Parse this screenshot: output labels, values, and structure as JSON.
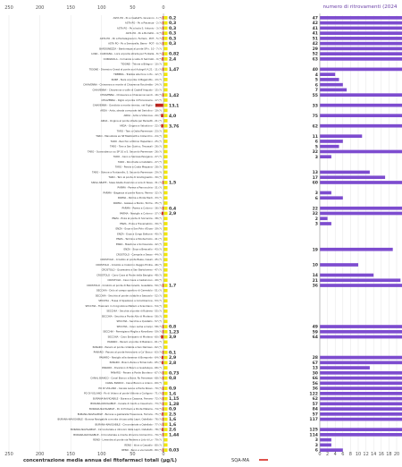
{
  "chart_data": {
    "type": "bar",
    "orientation": "horizontal",
    "right_axis_title": "numero di ritrovamenti (2024",
    "bottom_axis_title": "concentrazione media annua  dei fitofarmaci totali (μg/L)",
    "legend_label": "SQA-MA",
    "left_axis_ticks": [
      "250",
      "200",
      "150",
      "100",
      "50",
      "0"
    ],
    "right_axis_ticks": [
      "0",
      "2",
      "4",
      "6",
      "8",
      "10",
      "12",
      "14",
      "16",
      "18",
      "20"
    ],
    "left_axis_range": [
      0,
      250
    ],
    "right_axis_range": [
      0,
      20
    ],
    "colors": {
      "concentration": "#d7261e",
      "count": "#7d4ccf",
      "sqa": "#f2e600",
      "grid": "#dddddd"
    },
    "stations": [
      {
        "label": "ASTA PO - Po a Castell'S. Giovanni - 1 (*)",
        "conc": "0,2",
        "count": "47",
        "conc_value": 0.2,
        "count_value": 47
      },
      {
        "label": "ASTA PO - Po a Piacenza - 2 (*)",
        "conc": "0,3",
        "count": "42",
        "conc_value": 0.3,
        "count_value": 42
      },
      {
        "label": "ASTA PO - Po a Isola S. Antonio - 3 (*)",
        "conc": "0,3",
        "count": "41",
        "conc_value": 0.3,
        "count_value": 41
      },
      {
        "label": "ASTA PO - Po a Borretto - 4 (*)",
        "conc": "0,3",
        "count": "41",
        "conc_value": 0.3,
        "count_value": 41
      },
      {
        "label": "ASTA PO - Po a Pontelagoscuro, Ferrara - POT - 5 (*)",
        "conc": "0,3",
        "count": "51",
        "conc_value": 0.3,
        "count_value": 51
      },
      {
        "label": "ASTA PO - Po a Serravalle, Berra - POT - 6 (*)",
        "conc": "0,3",
        "count": "42",
        "conc_value": 0.3,
        "count_value": 42
      },
      {
        "label": "BARDONEZZA - Bardonezza al ponte SP n. 10 - 7 (*)",
        "conc": "",
        "count": "29",
        "conc_value": 0,
        "count_value": 29
      },
      {
        "label": "LORA - CAROGNA - Lora al ponte strada per Fontella - 8 (*)",
        "conc": "0,82",
        "count": "52",
        "conc_value": 0.82,
        "count_value": 52
      },
      {
        "label": "CORNAIOLA - Cornaiola a valle di Sarmato - 9 (*)",
        "conc": "2,4",
        "count": "63",
        "conc_value": 2.4,
        "count_value": 63
      },
      {
        "label": "TIDONE - Tidone a Bilegno - 10 (*)",
        "conc": "",
        "count": "",
        "conc_value": 0,
        "count_value": 0
      },
      {
        "label": "TIDONE - Diversivo Ovest al ponte sud Autogrill A.21 - 11 (*)",
        "conc": "1,47",
        "count": "40",
        "conc_value": 1.47,
        "count_value": 40
      },
      {
        "label": "TREBBIA - Trebbia alla foce in Po - 12 (*)",
        "conc": "",
        "count": "4",
        "conc_value": 0,
        "count_value": 4
      },
      {
        "label": "NURE - Nure al ponte di Bagarotto - 13 (*)",
        "conc": "",
        "count": "5",
        "conc_value": 0,
        "count_value": 5
      },
      {
        "label": "CHIAVENNA - Chiavenna a monte di Chiavenna Rocchetta - 14 (*)",
        "conc": "",
        "count": "6",
        "conc_value": 0,
        "count_value": 6
      },
      {
        "label": "CHIAVENNA - Chiavenna a valle di Castell'Arquato - 15 (*)",
        "conc": "",
        "count": "7",
        "conc_value": 0,
        "count_value": 7
      },
      {
        "label": "CHIAVENNA - Chiavenna a Chiavenna Landi - 16 (*)",
        "conc": "1,42",
        "count": "55",
        "conc_value": 1.42,
        "count_value": 55
      },
      {
        "label": "CHIAVENNA - Riglio al ponte di Fiorenzuola - 17 (*)",
        "conc": "",
        "count": "",
        "conc_value": 0,
        "count_value": 0
      },
      {
        "label": "CHIAVENNA - Gandiola a monte immiss. nel Riglio - 18 (*)",
        "conc": "13,1",
        "count": "33",
        "conc_value": 13.1,
        "count_value": 33
      },
      {
        "label": "ARDA - Arda, strada comunale del Seriolino - 19 (*)",
        "conc": "",
        "count": "",
        "conc_value": 0,
        "count_value": 0
      },
      {
        "label": "ARDA - Arda a Villanova - 20 (*)",
        "conc": "4,0",
        "count": "75",
        "conc_value": 4.0,
        "count_value": 75
      },
      {
        "label": "ARDA - Ongina al ponte strada per Bersetti - 21 (*)",
        "conc": "",
        "count": "",
        "conc_value": 0,
        "count_value": 0
      },
      {
        "label": "ARDA - Ongina a Valcalcino - 22 (*)",
        "conc": "3,76",
        "count": "62",
        "conc_value": 3.76,
        "count_value": 62
      },
      {
        "label": "TARO - Taro a Ostia Parmense - 23 (*)",
        "conc": "",
        "count": "",
        "conc_value": 0,
        "count_value": 0
      },
      {
        "label": "TARO - Manubiola ex SP Mastinetti a Collecchio - 24 (*)",
        "conc": "",
        "count": "11",
        "conc_value": 0,
        "count_value": 11
      },
      {
        "label": "TARO - Recchio a Molino Hapeldeni - 25 (*)",
        "conc": "",
        "count": "6",
        "conc_value": 0,
        "count_value": 6
      },
      {
        "label": "TARO - Taro a San Quirico, Trecasali - 26 (*)",
        "conc": "",
        "count": "5",
        "conc_value": 0,
        "count_value": 5
      },
      {
        "label": "TARO - Scannabecco su SP 10 a S. Secondo Parmense - 26 (*)",
        "conc": "",
        "count": "32",
        "conc_value": 0,
        "count_value": 32
      },
      {
        "label": "TARO - Ceno a Sarossa Pevigana - 27 (*)",
        "conc": "",
        "count": "3",
        "conc_value": 0,
        "count_value": 3
      },
      {
        "label": "TARO - Ronchella a Calistello - 27 (*)",
        "conc": "",
        "count": "",
        "conc_value": 0,
        "count_value": 0
      },
      {
        "label": "TARO - Parola a Costa Mezzana - 28 (*)",
        "conc": "",
        "count": "",
        "conc_value": 0,
        "count_value": 0
      },
      {
        "label": "TARO - Stirone a Fontanelle, S. Secondo Parmense - 29 (*)",
        "conc": "",
        "count": "13",
        "conc_value": 0,
        "count_value": 13
      },
      {
        "label": "TARO - Taro al ponte di Gramignazzo - 30 (*)",
        "conc": "",
        "count": "17",
        "conc_value": 0,
        "count_value": 17
      },
      {
        "label": "SISSA ABATE - Sissa Abate diversivo a Loia di Sissa - 31 (*)",
        "conc": "1,5",
        "count": "60",
        "conc_value": 1.5,
        "count_value": 60
      },
      {
        "label": "PARMA - Parma a Pannocchia - 31 (*)",
        "conc": "",
        "count": "",
        "conc_value": 0,
        "count_value": 0
      },
      {
        "label": "PARMA - Baganza al ponte Nuovo, Parma - 32 (*)",
        "conc": "",
        "count": "3",
        "conc_value": 0,
        "count_value": 3
      },
      {
        "label": "PARMA - Parma a Ponte Medi - 33 (*)",
        "conc": "",
        "count": "6",
        "conc_value": 0,
        "count_value": 6
      },
      {
        "label": "PARMA - Galasso a Bozzo, Torrile - 35 (*)",
        "conc": "",
        "count": "",
        "conc_value": 0,
        "count_value": 0
      },
      {
        "label": "PARMA - Parma a Colorno - 36 (*)",
        "conc": "0,4",
        "count": "22",
        "conc_value": 0.4,
        "count_value": 22
      },
      {
        "label": "PARMA - Naviglio a Colorno - 37 (*)",
        "conc": "2,9",
        "count": "32",
        "conc_value": 2.9,
        "count_value": 32
      },
      {
        "label": "ENZA - Enza al ponte di Sorcerole - 38 (*)",
        "conc": "",
        "count": "2",
        "conc_value": 0,
        "count_value": 2
      },
      {
        "label": "ENZA - Enza a Traversetolo - 39 (*)",
        "conc": "",
        "count": "3",
        "conc_value": 0,
        "count_value": 3
      },
      {
        "label": "ENZA - Enza a San Polo d'Enza - 39 (*)",
        "conc": "",
        "count": "",
        "conc_value": 0,
        "count_value": 0
      },
      {
        "label": "ENZA - Enza a Gorgo Bottone - 40 (*)",
        "conc": "",
        "count": "",
        "conc_value": 0,
        "count_value": 0
      },
      {
        "label": "ENZA - Termina a Montechiolo - 41 (*)",
        "conc": "",
        "count": "",
        "conc_value": 0,
        "count_value": 0
      },
      {
        "label": "ENZA - Masdone a Sorravanza - 42 (*)",
        "conc": "",
        "count": "",
        "conc_value": 0,
        "count_value": 0
      },
      {
        "label": "ENZA - Enza a Brescello - 43 (*)",
        "conc": "",
        "count": "19",
        "conc_value": 0,
        "count_value": 19
      },
      {
        "label": "CROSTOLO - Campola a Sesso - 44 (*)",
        "conc": "",
        "count": "",
        "conc_value": 0,
        "count_value": 0
      },
      {
        "label": "CROSTOLO - Crostolo al ponte Bsaie, Casali - 45 (*)",
        "conc": "",
        "count": "",
        "conc_value": 0,
        "count_value": 0
      },
      {
        "label": "CROSTOLO - Crostolo a Cozzorni, Reggio Emilia - 46 (*)",
        "conc": "",
        "count": "10",
        "conc_value": 0,
        "count_value": 10
      },
      {
        "label": "CROSTOLO - Quaresima a San Bartolomeo - 47 (*)",
        "conc": "",
        "count": "",
        "conc_value": 0,
        "count_value": 0
      },
      {
        "label": "CROSTOLO - Cavo Cava al Ponte della Baviglia - 48 (*)",
        "conc": "",
        "count": "14",
        "conc_value": 0,
        "count_value": 14
      },
      {
        "label": "CROSTOLO - Cavo Cava a Castelnovo - 49 (*)",
        "conc": "",
        "count": "21",
        "conc_value": 0,
        "count_value": 21
      },
      {
        "label": "CROSTOLO - Crostolo al ponte di Baccanello, Guastalla - 50 (*)",
        "conc": "1,7",
        "count": "36",
        "conc_value": 1.7,
        "count_value": 36
      },
      {
        "label": "SECCHIA - Dolo al campo sportivo di Cerredolo - 51 (*)",
        "conc": "",
        "count": "",
        "conc_value": 0,
        "count_value": 0
      },
      {
        "label": "SECCHIA - Secchia al ponte ciclabile a Sassuolo - 52 (*)",
        "conc": "",
        "count": "",
        "conc_value": 0,
        "count_value": 0
      },
      {
        "label": "SECCHIA - Fossa di Spezzano a Colombarone - 53 (*)",
        "conc": "",
        "count": "",
        "conc_value": 0,
        "count_value": 0
      },
      {
        "label": "SECCHIA - Tresinaro in ricognizione Mellaro a Scandiano - 54 (*)",
        "conc": "",
        "count": "",
        "conc_value": 0,
        "count_value": 0
      },
      {
        "label": "SECCHIA - Secchia al ponte di Rubiera - 55 (*)",
        "conc": "",
        "count": "",
        "conc_value": 0,
        "count_value": 0
      },
      {
        "label": "SECCHIA - Secchia a Ponte Alto di Modena - 56 (*)",
        "conc": "",
        "count": "",
        "conc_value": 0,
        "count_value": 0
      },
      {
        "label": "SECCHIA - Secchia a Quistello - 57 (*)",
        "conc": "",
        "count": "",
        "conc_value": 0,
        "count_value": 0
      },
      {
        "label": "SECCHIA - Cavo Lama a Carpi - 58 (*)",
        "conc": "0,8",
        "count": "49",
        "conc_value": 0.8,
        "count_value": 49
      },
      {
        "label": "SECCHIA - Parmigiana Moglia a Novellara - 59 (*)",
        "conc": "1,23",
        "count": "59",
        "conc_value": 1.23,
        "count_value": 59
      },
      {
        "label": "SECCHIA - Cavo Emissario di Modena - 60 (*)",
        "conc": "3,9",
        "count": "64",
        "conc_value": 3.9,
        "count_value": 64
      },
      {
        "label": "PANARO - Panaro al ponte di Bazzano - 61 (*)",
        "conc": "",
        "count": "",
        "conc_value": 0,
        "count_value": 0
      },
      {
        "label": "PANARO - Panaro al ponte ciclabile a San Damaso - 62 (*)",
        "conc": "",
        "count": "",
        "conc_value": 0,
        "count_value": 0
      },
      {
        "label": "PANARO - Panaro al ponte ferroviario a Ca' Bosco - 63 (*)",
        "conc": "0,1",
        "count": "",
        "conc_value": 0.1,
        "count_value": 0
      },
      {
        "label": "PANARO - Naviglio alla darsena di Bomporto - 64 (*)",
        "conc": "2,9",
        "count": "28",
        "conc_value": 2.9,
        "count_value": 28
      },
      {
        "label": "PANARO - Bosco Zenia a Tomaccato - 65 (*)",
        "conc": "2,8",
        "count": "67",
        "conc_value": 2.8,
        "count_value": 67
      },
      {
        "label": "PANARO - Diversivo di Bosco a Guadalupa - 66 (*)",
        "conc": "",
        "count": "13",
        "conc_value": 0,
        "count_value": 13
      },
      {
        "label": "PANARO - Panaro a Ponte Bondeno - 67 (*)",
        "conc": "0,73",
        "count": "30",
        "conc_value": 0.73,
        "count_value": 30
      },
      {
        "label": "CANAL BIANCO - Canal Bianco a Bonà, Ro Ferrarese - 68 (*)",
        "conc": "0,8",
        "count": "66",
        "conc_value": 0.8,
        "count_value": 66
      },
      {
        "label": "CANAL BIANCO - Canal Bianco a Ariano - 69 (*)",
        "conc": "",
        "count": "56",
        "conc_value": 0,
        "count_value": 56
      },
      {
        "label": "PO DI VOLANO - Canale Leone a Ponte Rosso - 70 (*)",
        "conc": "0,9",
        "count": "36",
        "conc_value": 0.9,
        "count_value": 36
      },
      {
        "label": "PO DI VOLANO - Po di Volano al ponte Vittoria a Codigoro - 71 (*)",
        "conc": "1,6",
        "count": "122",
        "conc_value": 1.6,
        "count_value": 122
      },
      {
        "label": "BURANA-NAVIGABILE - Burana a Cassana, Ferrara - 72 (*)",
        "conc": "1,15",
        "count": "62",
        "conc_value": 1.15,
        "count_value": 62
      },
      {
        "label": "BURANA-NAVIGABILE - Canale di Cento a Casumaro - 73 (*)",
        "conc": "1,28",
        "count": "57",
        "conc_value": 1.28,
        "count_value": 57
      },
      {
        "label": "BURANA-NAVIGABILE - Po di Primaro a Ponte Materia - 74 (*)",
        "conc": "0,9",
        "count": "84",
        "conc_value": 0.9,
        "count_value": 84
      },
      {
        "label": "BURANA-NAVIGABILE - Burana a gazzarella Fossanova, Ferrara - 75 (*)",
        "conc": "2,5",
        "count": "57",
        "conc_value": 2.5,
        "count_value": 57
      },
      {
        "label": "BURANA-NAVIGABILE - Burana Navigabile a monte chiusa sotto Lepri, Ostellato - 76 (*)",
        "conc": "1,6",
        "count": "117",
        "conc_value": 1.6,
        "count_value": 117
      },
      {
        "label": "BURANA-NAVIGABILE - Circondariale a Ostellato - 77 (*)",
        "conc": "1,6",
        "count": "",
        "conc_value": 1.6,
        "count_value": 0
      },
      {
        "label": "BURANA-NAVIGABILE - Circondariale a idrovoro Valle Lepri, Ostellato - 78 (*)",
        "conc": "2,6",
        "count": "125",
        "conc_value": 2.6,
        "count_value": 125
      },
      {
        "label": "BURANA-NAVIGABILE - Circondariale a monte idrovora Comacchio - 79 (*)",
        "conc": "1,44",
        "count": "114",
        "conc_value": 1.44,
        "count_value": 114
      },
      {
        "label": "RENO - Limentra al ponte via Pantera a Lido di Lo - 79 (*)",
        "conc": "",
        "count": "3",
        "conc_value": 0,
        "count_value": 3
      },
      {
        "label": "RENO - Idice a Cassallo - 80 (*)",
        "conc": "",
        "count": "3",
        "conc_value": 0,
        "count_value": 3
      },
      {
        "label": "RENO - Reno a via Caretti - 80 (*)",
        "conc": "0,03",
        "count": "6",
        "conc_value": 0.03,
        "count_value": 6
      }
    ]
  }
}
